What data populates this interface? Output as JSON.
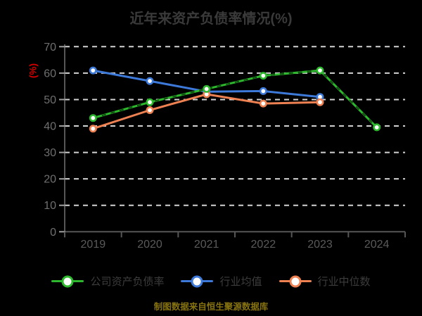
{
  "title": "近年来资产负债率情况(%)",
  "y_axis_unit": "(%)",
  "caption": "制图数据来自恒生聚源数据库",
  "colors": {
    "background": "#000000",
    "title_text": "#3a3a3a",
    "y_axis_unit_text": "#d40000",
    "axis_line": "#565656",
    "y_tick_mark": "#a0a0a0",
    "x_tick_mark": "#565656",
    "grid_line": "#d2d2d2",
    "y_tick_label": "#6f6f6f",
    "x_tick_label": "#5a5a5a",
    "legend_text": "#3c3c3c",
    "caption_text": "#867310",
    "marker_fill": "#ffffff"
  },
  "chart_data": {
    "type": "line",
    "title": "近年来资产负债率情况(%)",
    "ylabel": "(%)",
    "xlabel": "",
    "categories": [
      "2019",
      "2020",
      "2021",
      "2022",
      "2023",
      "2024"
    ],
    "ylim": [
      0,
      70
    ],
    "yticks": [
      0,
      10,
      20,
      30,
      40,
      50,
      60,
      70
    ],
    "grid": "horizontal-dashed",
    "legend_position": "bottom",
    "series": [
      {
        "id": "company-debt-ratio",
        "name": "公司资产负债率",
        "color": "#2eb82e",
        "dash_overlay_color": "#0f4f0f",
        "values": [
          43,
          49,
          54,
          59,
          61,
          39.5
        ]
      },
      {
        "id": "industry-mean",
        "name": "行业均值",
        "color": "#3d79d8",
        "dash_overlay_color": null,
        "values": [
          61,
          57,
          53,
          53.2,
          51,
          null
        ]
      },
      {
        "id": "industry-median",
        "name": "行业中位数",
        "color": "#ee8152",
        "dash_overlay_color": null,
        "values": [
          39,
          46,
          52,
          48.5,
          49,
          null
        ]
      }
    ]
  }
}
